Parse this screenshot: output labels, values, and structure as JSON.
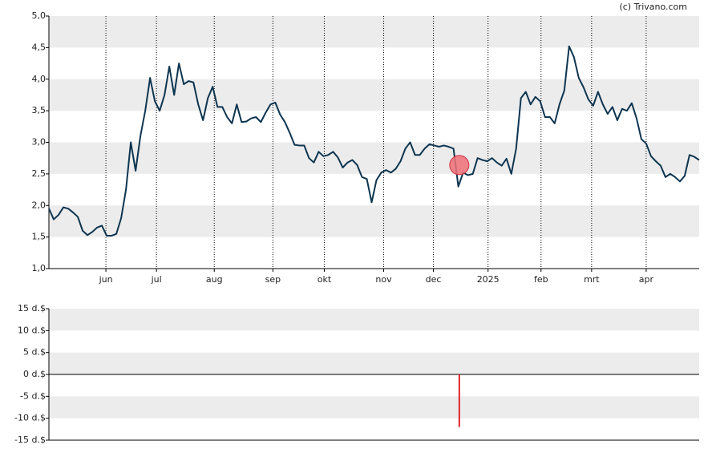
{
  "credit": "(c) Trivano.com",
  "chart_data": [
    {
      "type": "line",
      "color": "#0d3550",
      "grid": true,
      "xlim": [
        0,
        135
      ],
      "xticks": [
        {
          "value": 11.83,
          "label": "jun"
        },
        {
          "value": 22.33,
          "label": "jul"
        },
        {
          "value": 34.33,
          "label": "aug"
        },
        {
          "value": 46.5,
          "label": "sep"
        },
        {
          "value": 57.17,
          "label": "okt"
        },
        {
          "value": 69.5,
          "label": "nov"
        },
        {
          "value": 79.83,
          "label": "dec"
        },
        {
          "value": 91.17,
          "label": "2025"
        },
        {
          "value": 102.17,
          "label": "feb"
        },
        {
          "value": 112.67,
          "label": "mrt"
        },
        {
          "value": 124,
          "label": "apr"
        }
      ],
      "ylim": [
        1,
        5
      ],
      "yticks": [
        {
          "value": 5,
          "label": "5,0"
        },
        {
          "value": 4.5,
          "label": "4,5"
        },
        {
          "value": 4,
          "label": "4,0"
        },
        {
          "value": 3.5,
          "label": "3,5"
        },
        {
          "value": 3,
          "label": "3,0"
        },
        {
          "value": 2.5,
          "label": "2,5"
        },
        {
          "value": 2,
          "label": "2,0"
        },
        {
          "value": 1.5,
          "label": "1,5"
        },
        {
          "value": 1,
          "label": "1,0"
        }
      ],
      "values": [
        1.95,
        1.78,
        1.85,
        1.97,
        1.95,
        1.89,
        1.82,
        1.6,
        1.53,
        1.58,
        1.65,
        1.68,
        1.52,
        1.52,
        1.55,
        1.8,
        2.25,
        3.0,
        2.55,
        3.1,
        3.5,
        4.02,
        3.65,
        3.5,
        3.75,
        4.2,
        3.75,
        4.25,
        3.92,
        3.97,
        3.95,
        3.6,
        3.35,
        3.7,
        3.88,
        3.56,
        3.56,
        3.4,
        3.3,
        3.6,
        3.32,
        3.33,
        3.38,
        3.4,
        3.32,
        3.47,
        3.6,
        3.63,
        3.44,
        3.32,
        3.15,
        2.96,
        2.95,
        2.95,
        2.75,
        2.68,
        2.85,
        2.78,
        2.8,
        2.85,
        2.76,
        2.6,
        2.68,
        2.72,
        2.64,
        2.45,
        2.42,
        2.05,
        2.4,
        2.52,
        2.56,
        2.52,
        2.58,
        2.7,
        2.9,
        3.0,
        2.8,
        2.8,
        2.9,
        2.97,
        2.95,
        2.93,
        2.95,
        2.93,
        2.9,
        2.3,
        2.52,
        2.48,
        2.5,
        2.75,
        2.72,
        2.7,
        2.75,
        2.68,
        2.63,
        2.74,
        2.5,
        2.9,
        3.7,
        3.8,
        3.6,
        3.72,
        3.65,
        3.4,
        3.4,
        3.3,
        3.6,
        3.82,
        4.52,
        4.35,
        4.02,
        3.87,
        3.68,
        3.58,
        3.8,
        3.6,
        3.45,
        3.56,
        3.35,
        3.53,
        3.5,
        3.62,
        3.38,
        3.05,
        2.98,
        2.78,
        2.7,
        2.63,
        2.45,
        2.5,
        2.45,
        2.38,
        2.47,
        2.8,
        2.77,
        2.72
      ],
      "highlight": {
        "x": 85.2,
        "y": 2.64,
        "color": "#f07078"
      }
    },
    {
      "type": "bar",
      "color": "#e0202a",
      "grid": true,
      "xlim": [
        0,
        135
      ],
      "ylim": [
        -15,
        15
      ],
      "yticks": [
        {
          "value": 15,
          "label": "15 d.$"
        },
        {
          "value": 10,
          "label": "10 d.$"
        },
        {
          "value": 5,
          "label": "5 d.$"
        },
        {
          "value": 0,
          "label": "0 d.$"
        },
        {
          "value": -5,
          "label": "-5 d.$"
        },
        {
          "value": -10,
          "label": "-10 d.$"
        },
        {
          "value": -15,
          "label": "-15 d.$"
        }
      ],
      "x": [
        85.2
      ],
      "values": [
        -12
      ]
    }
  ]
}
